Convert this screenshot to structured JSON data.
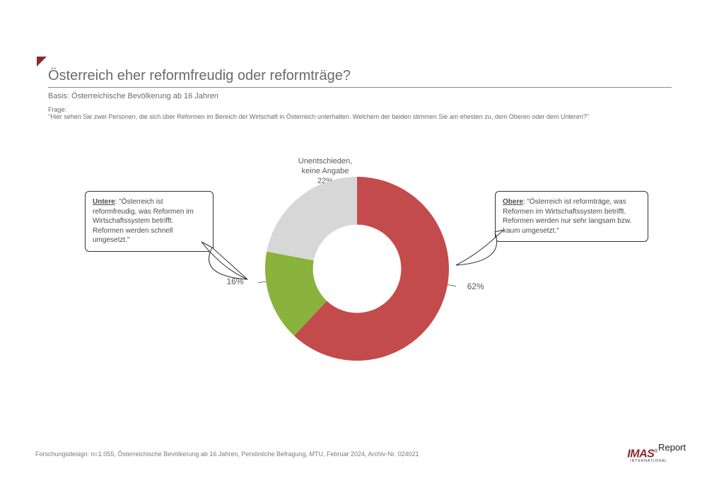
{
  "title": "Österreich eher reformfreudig oder reformträge?",
  "basis_label": "Basis:",
  "basis_text": "Österreichische Bevölkerung ab 16 Jahren",
  "question_label": "Frage:",
  "question_text": "\"Hier sehen Sie zwei Personen, die sich über Reformen im Bereich der Wirtschaft in Österreich unterhalten. Welchem der beiden stimmen Sie am ehesten zu, dem Oberen oder dem Unteren?\"",
  "chart": {
    "type": "donut",
    "inner_radius_ratio": 0.48,
    "background_color": "#ffffff",
    "slices": [
      {
        "key": "obere",
        "value": 62,
        "color": "#c44b4b",
        "label_text": "62%"
      },
      {
        "key": "untere",
        "value": 16,
        "color": "#89b33d",
        "label_text": "16%"
      },
      {
        "key": "unent",
        "value": 22,
        "color": "#d7d7d7",
        "label_text": "22%"
      }
    ],
    "start_angle_deg": 0,
    "top_category": {
      "line1": "Unentschieden,",
      "line2": "keine Angabe"
    },
    "callouts": {
      "untere": {
        "head": "Untere",
        "body": ": \"Österreich ist reformfreudig, was Reformen im Wirtschaftssystem betrifft. Reformen werden schnell umgesetzt.\""
      },
      "obere": {
        "head": "Obere",
        "body": ": \"Österreich ist reformträge, was Reformen im Wirtschaftssystem betrifft. Reformen werden nur sehr langsam bzw. kaum umgesetzt.\""
      }
    }
  },
  "footer": "Forschungsdesign: n=1.055, Österreichische Bevölkerung ab 16 Jahren, Persönliche Befragung, MTU, Februar 2024, Archiv-Nr. 024021",
  "logo": {
    "brand": "IMAS",
    "sub": "INTERNATIONAL",
    "product": "Report",
    "reg": "®"
  },
  "colors": {
    "accent": "#8a2a2a",
    "text": "#5f5f5f"
  }
}
